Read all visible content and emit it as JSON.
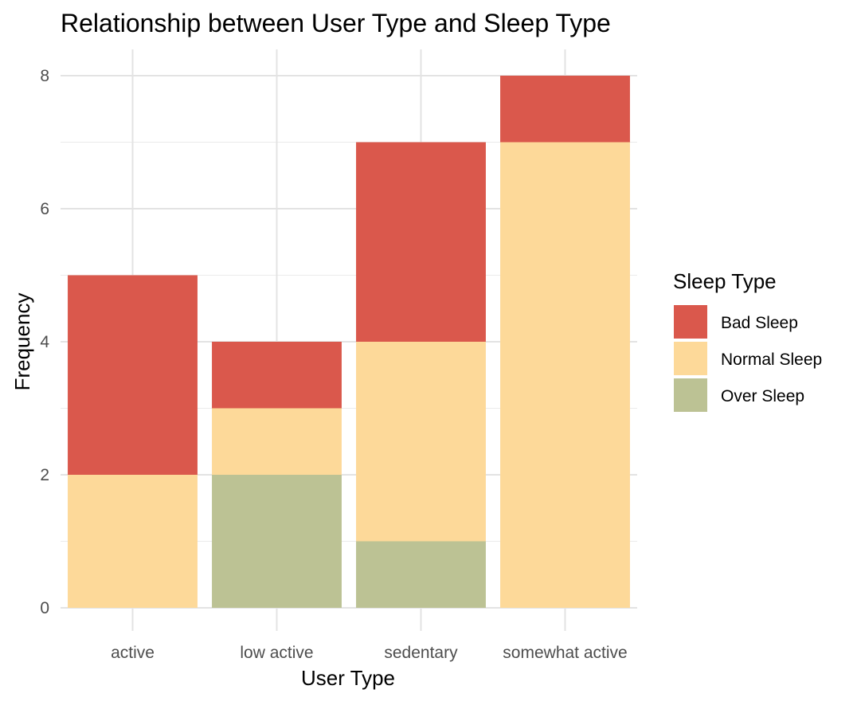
{
  "chart_data": {
    "type": "bar",
    "stacked": true,
    "title": "Relationship between User Type and Sleep Type",
    "xlabel": "User Type",
    "ylabel": "Frequency",
    "categories": [
      "active",
      "low active",
      "sedentary",
      "somewhat active"
    ],
    "series": [
      {
        "name": "Over Sleep",
        "values": [
          0,
          2,
          1,
          0
        ],
        "color": "#bcc294"
      },
      {
        "name": "Normal Sleep",
        "values": [
          2,
          1,
          3,
          7
        ],
        "color": "#fdd999"
      },
      {
        "name": "Bad Sleep",
        "values": [
          3,
          1,
          3,
          1
        ],
        "color": "#da584c"
      }
    ],
    "ylim": [
      0,
      8
    ],
    "yticks": [
      0,
      2,
      4,
      6,
      8
    ],
    "grid": true,
    "legend": {
      "title": "Sleep Type",
      "position": "right",
      "items": [
        {
          "label": "Bad Sleep",
          "color": "#da584c"
        },
        {
          "label": "Normal Sleep",
          "color": "#fdd999"
        },
        {
          "label": "Over Sleep",
          "color": "#bcc294"
        }
      ]
    }
  }
}
